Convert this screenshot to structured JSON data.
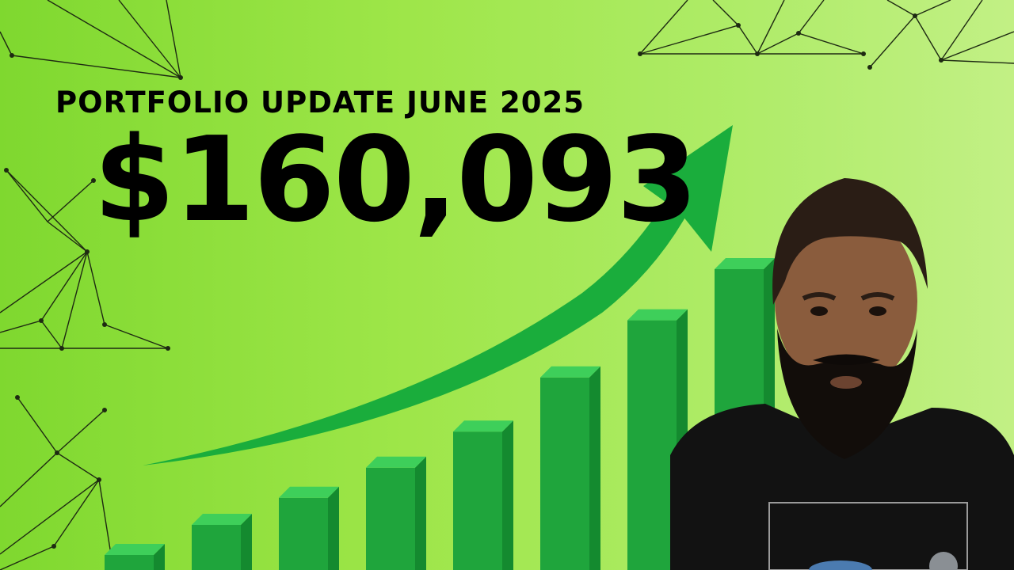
{
  "headline": "PORTFOLIO UPDATE JUNE 2025",
  "amount": "$160,093",
  "bar_chart": {
    "bar_count": 8,
    "heights_relative": [
      0.05,
      0.15,
      0.24,
      0.34,
      0.46,
      0.64,
      0.83,
      1.0
    ]
  },
  "colors": {
    "bg_left": "#7fd82f",
    "bg_right": "#c2f085",
    "bar_front": "#1fa53c",
    "bar_top": "#3ecf5a",
    "bar_side": "#148a2f",
    "arrow": "#1aad3c",
    "text": "#000000"
  },
  "icons": {
    "arrow": "upward-trend-arrow-icon",
    "network": "network-nodes-decoration",
    "person": "presenter-photo"
  }
}
